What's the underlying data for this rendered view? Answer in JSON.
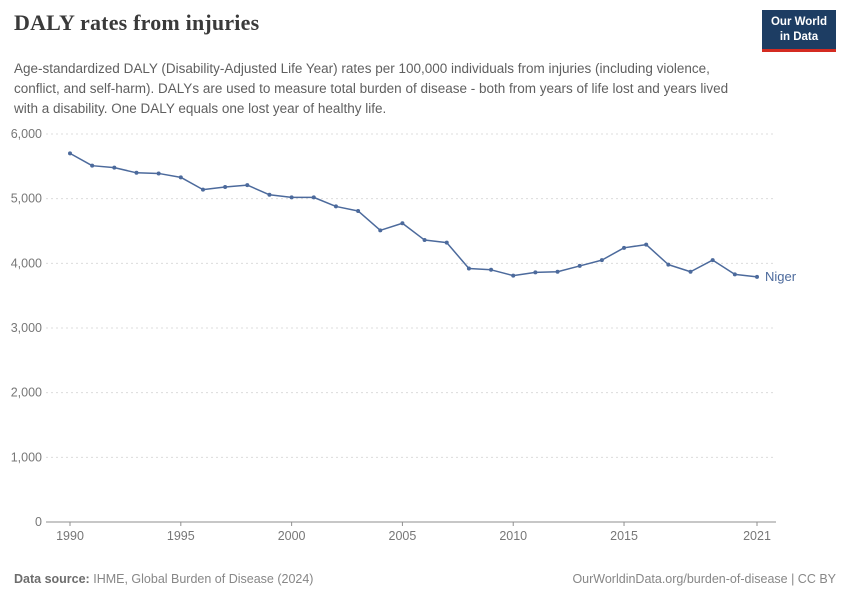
{
  "header": {
    "title": "DALY rates from injuries",
    "subtitle": "Age-standardized DALY (Disability-Adjusted Life Year) rates per 100,000 individuals from injuries (including violence, conflict, and self-harm). DALYs are used to measure total burden of disease - both from years of life lost and years lived with a disability. One DALY equals one lost year of healthy life.",
    "logo_line1": "Our World",
    "logo_line2": "in Data"
  },
  "footer": {
    "source_label": "Data source:",
    "source_text": "IHME, Global Burden of Disease (2024)",
    "right_text": "OurWorldinData.org/burden-of-disease | CC BY"
  },
  "colors": {
    "series": "#4C6A9C",
    "gridline": "#dcdcdc",
    "axis": "#8f8f8f",
    "tick_label": "#777777",
    "logo_bg": "#1d3d63",
    "logo_accent": "#d42b21"
  },
  "chart_data": {
    "type": "line",
    "title": "DALY rates from injuries",
    "xlabel": "",
    "ylabel": "",
    "xlim": [
      1990,
      2021
    ],
    "ylim": [
      0,
      6000
    ],
    "grid": "horizontal-dashed",
    "legend_position": "end-of-line",
    "xticks": [
      1990,
      1995,
      2000,
      2005,
      2010,
      2015,
      2021
    ],
    "xtick_labels": [
      "1990",
      "1995",
      "2000",
      "2005",
      "2010",
      "2015",
      "2021"
    ],
    "yticks": [
      0,
      1000,
      2000,
      3000,
      4000,
      5000,
      6000
    ],
    "ytick_labels": [
      "0",
      "1,000",
      "2,000",
      "3,000",
      "4,000",
      "5,000",
      "6,000"
    ],
    "x": [
      1990,
      1991,
      1992,
      1993,
      1994,
      1995,
      1996,
      1997,
      1998,
      1999,
      2000,
      2001,
      2002,
      2003,
      2004,
      2005,
      2006,
      2007,
      2008,
      2009,
      2010,
      2011,
      2012,
      2013,
      2014,
      2015,
      2016,
      2017,
      2018,
      2019,
      2020,
      2021
    ],
    "series": [
      {
        "name": "Niger",
        "color": "#4C6A9C",
        "values": [
          5700,
          5510,
          5480,
          5400,
          5390,
          5330,
          5140,
          5180,
          5210,
          5060,
          5020,
          5020,
          4880,
          4810,
          4510,
          4620,
          4360,
          4320,
          3920,
          3900,
          3810,
          3860,
          3870,
          3960,
          4050,
          4240,
          4290,
          3980,
          3870,
          4050,
          3830,
          3790
        ]
      }
    ]
  }
}
